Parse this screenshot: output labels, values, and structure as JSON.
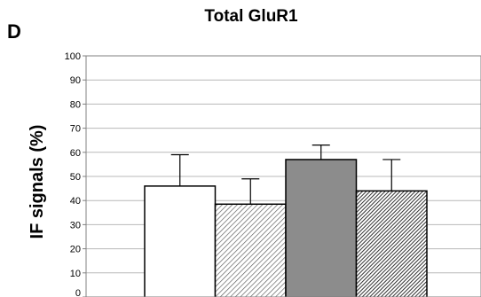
{
  "panel_label": "D",
  "chart_data": {
    "type": "bar",
    "title": "Total GluR1",
    "xlabel": "",
    "ylabel": "IF signals (%)",
    "ylim": [
      0,
      100
    ],
    "yticks": [
      0,
      10,
      20,
      30,
      40,
      50,
      60,
      70,
      80,
      90,
      100
    ],
    "grid": true,
    "bars": [
      {
        "value": 46,
        "error": 13,
        "fill": "#ffffff",
        "pattern": "none"
      },
      {
        "value": 38.5,
        "error": 10.5,
        "fill": "#ffffff",
        "pattern": "light-diagonal-hatch"
      },
      {
        "value": 57,
        "error": 6,
        "fill": "#8c8c8c",
        "pattern": "none"
      },
      {
        "value": 44,
        "error": 13,
        "fill": "#ffffff",
        "pattern": "dense-diagonal-hatch"
      }
    ]
  }
}
